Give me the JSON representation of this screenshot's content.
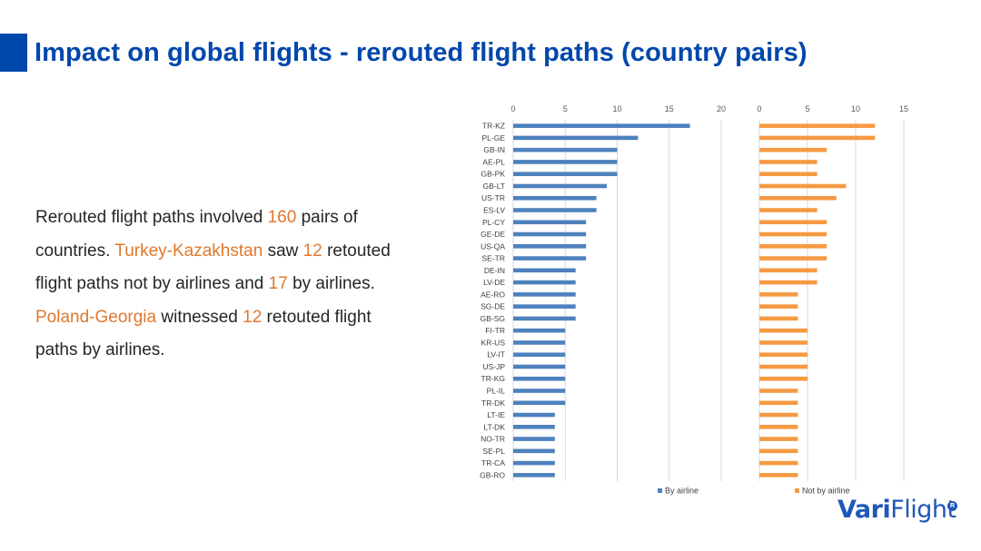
{
  "header": {
    "title": "Impact on global flights - rerouted flight paths (country pairs)"
  },
  "summary": {
    "p1": "Rerouted flight paths involved ",
    "v1": "160",
    "p2": " pairs of countries. ",
    "v2": "Turkey-Kazakhstan",
    "p3": " saw ",
    "v3": "12",
    "p4": " retouted flight paths not by airlines and ",
    "v4": "17",
    "p5": " by airlines. ",
    "v5": "Poland-Georgia",
    "p6": " witnessed ",
    "v6": "12",
    "p7": " retouted flight paths by airlines."
  },
  "logo": {
    "text_a": "Vari",
    "text_b": "Flight",
    "mark": "R"
  },
  "colors": {
    "title": "#0047ab",
    "accent": "#0047ab",
    "highlight": "#e0782d",
    "by_airline": "#4e81bd",
    "not_by_airline": "#f59a42",
    "logo": "#1f58b8"
  },
  "chart_data": [
    {
      "type": "bar",
      "orientation": "horizontal",
      "categories": [
        "TR-KZ",
        "PL-GE",
        "GB-IN",
        "AE-PL",
        "GB-PK",
        "GB-LT",
        "US-TR",
        "ES-LV",
        "PL-CY",
        "GE-DE",
        "US-QA",
        "SE-TR",
        "DE-IN",
        "LV-DE",
        "AE-RO",
        "SG-DE",
        "GB-SG",
        "FI-TR",
        "KR-US",
        "LV-IT",
        "US-JP",
        "TR-KG",
        "PL-IL",
        "TR-DK",
        "LT-IE",
        "LT-DK",
        "NO-TR",
        "SE-PL",
        "TR-CA",
        "GB-RO"
      ],
      "series": [
        {
          "name": "By airline",
          "values": [
            17,
            12,
            10,
            10,
            10,
            9,
            8,
            8,
            7,
            7,
            7,
            7,
            6,
            6,
            6,
            6,
            6,
            5,
            5,
            5,
            5,
            5,
            5,
            5,
            4,
            4,
            4,
            4,
            4,
            4
          ]
        }
      ],
      "xlim": [
        0,
        20
      ],
      "xticks": [
        "0",
        "5",
        "10",
        "15",
        "20"
      ],
      "grid": true,
      "legend": "bottom"
    },
    {
      "type": "bar",
      "orientation": "horizontal",
      "categories": [
        "TR-KZ",
        "PL-GE",
        "GB-IN",
        "AE-PL",
        "GB-PK",
        "GB-LT",
        "US-TR",
        "ES-LV",
        "PL-CY",
        "GE-DE",
        "US-QA",
        "SE-TR",
        "DE-IN",
        "LV-DE",
        "AE-RO",
        "SG-DE",
        "GB-SG",
        "FI-TR",
        "KR-US",
        "LV-IT",
        "US-JP",
        "TR-KG",
        "PL-IL",
        "TR-DK",
        "LT-IE",
        "LT-DK",
        "NO-TR",
        "SE-PL",
        "TR-CA",
        "GB-RO"
      ],
      "series": [
        {
          "name": "Not by airline",
          "values": [
            12,
            12,
            7,
            6,
            6,
            9,
            8,
            6,
            7,
            7,
            7,
            7,
            6,
            6,
            4,
            4,
            4,
            5,
            5,
            5,
            5,
            5,
            4,
            4,
            4,
            4,
            4,
            4,
            4,
            4
          ]
        }
      ],
      "xlim": [
        0,
        15
      ],
      "xticks": [
        "0",
        "5",
        "10",
        "15"
      ],
      "grid": true,
      "legend": "bottom"
    }
  ]
}
